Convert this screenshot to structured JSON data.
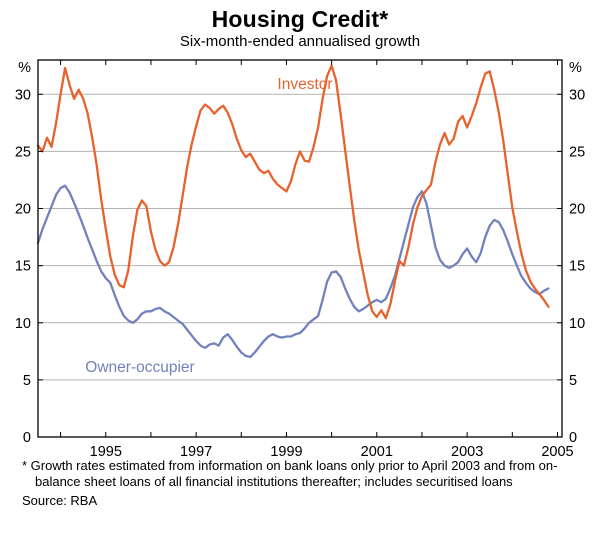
{
  "title": "Housing Credit*",
  "subtitle": "Six-month-ended annualised growth",
  "footnote": "* Growth rates estimated from information on bank loans only prior to April 2003 and from on-balance sheet loans of all financial institutions thereafter; includes securitised loans",
  "source": "Source: RBA",
  "chart_data": {
    "type": "line",
    "title": "Housing Credit*",
    "subtitle": "Six-month-ended annualised growth",
    "unit_left": "%",
    "unit_right": "%",
    "ylim": [
      0,
      33
    ],
    "yticks": [
      0,
      5,
      10,
      15,
      20,
      25,
      30
    ],
    "xlim": [
      1993.5,
      2005.1
    ],
    "tick_years": [
      1994,
      1995,
      1996,
      1997,
      1998,
      1999,
      2000,
      2001,
      2002,
      2003,
      2004,
      2005
    ],
    "xlabels": [
      {
        "v": 1995,
        "t": "1995"
      },
      {
        "v": 1997,
        "t": "1997"
      },
      {
        "v": 1999,
        "t": "1999"
      },
      {
        "v": 2001,
        "t": "2001"
      },
      {
        "v": 2003,
        "t": "2003"
      },
      {
        "v": 2005,
        "t": "2005"
      }
    ],
    "grid": "horizontal",
    "grid_color": "#b3b3b3",
    "frame_color": "#000000",
    "x": {
      "start": 1993.5,
      "step": 0.1,
      "count": 114
    },
    "series": [
      {
        "name": "Investor",
        "color": "#e8622d",
        "values": [
          25.5,
          25.0,
          26.2,
          25.4,
          27.5,
          30.0,
          32.3,
          30.8,
          29.6,
          30.4,
          29.6,
          28.3,
          26.2,
          23.8,
          20.8,
          18.2,
          15.8,
          14.2,
          13.3,
          13.1,
          14.6,
          17.6,
          19.9,
          20.7,
          20.2,
          18.0,
          16.4,
          15.4,
          15.0,
          15.3,
          16.6,
          18.6,
          21.1,
          23.6,
          25.6,
          27.2,
          28.6,
          29.1,
          28.8,
          28.3,
          28.7,
          29.0,
          28.4,
          27.4,
          26.1,
          25.1,
          24.5,
          24.8,
          24.1,
          23.4,
          23.1,
          23.3,
          22.6,
          22.1,
          21.8,
          21.5,
          22.4,
          23.9,
          25.0,
          24.2,
          24.1,
          25.4,
          27.1,
          29.6,
          31.6,
          32.5,
          31.2,
          28.2,
          25.1,
          22.0,
          19.0,
          16.4,
          14.4,
          12.4,
          11.0,
          10.5,
          11.1,
          10.4,
          11.6,
          13.6,
          15.4,
          15.0,
          16.6,
          18.6,
          20.1,
          21.1,
          21.6,
          22.1,
          24.1,
          25.6,
          26.6,
          25.6,
          26.1,
          27.6,
          28.1,
          27.1,
          28.1,
          29.2,
          30.6,
          31.8,
          32.0,
          30.4,
          28.4,
          25.9,
          23.0,
          20.1,
          18.0,
          16.1,
          14.6,
          13.6,
          13.0,
          12.5,
          12.0,
          11.4
        ]
      },
      {
        "name": "Owner-occupier",
        "color": "#7282bc",
        "values": [
          17.0,
          18.2,
          19.2,
          20.2,
          21.2,
          21.8,
          22.0,
          21.4,
          20.5,
          19.5,
          18.5,
          17.4,
          16.4,
          15.4,
          14.5,
          13.9,
          13.5,
          12.4,
          11.4,
          10.6,
          10.2,
          10.0,
          10.3,
          10.8,
          11.0,
          11.0,
          11.2,
          11.3,
          11.0,
          10.8,
          10.5,
          10.2,
          9.9,
          9.4,
          8.9,
          8.4,
          8.0,
          7.8,
          8.1,
          8.2,
          8.0,
          8.7,
          9.0,
          8.5,
          7.9,
          7.4,
          7.1,
          7.0,
          7.4,
          7.9,
          8.4,
          8.8,
          9.0,
          8.8,
          8.7,
          8.8,
          8.8,
          9.0,
          9.1,
          9.5,
          10.0,
          10.3,
          10.6,
          12.0,
          13.6,
          14.4,
          14.5,
          14.0,
          13.0,
          12.1,
          11.4,
          11.0,
          11.2,
          11.5,
          11.8,
          12.0,
          11.8,
          12.1,
          13.0,
          14.1,
          15.6,
          17.1,
          18.6,
          20.1,
          21.0,
          21.5,
          20.4,
          18.5,
          16.6,
          15.5,
          15.0,
          14.8,
          15.0,
          15.3,
          16.0,
          16.5,
          15.8,
          15.3,
          16.1,
          17.5,
          18.5,
          19.0,
          18.8,
          18.1,
          17.1,
          16.0,
          15.0,
          14.1,
          13.5,
          13.0,
          12.7,
          12.5,
          12.8,
          13.0
        ]
      }
    ]
  }
}
